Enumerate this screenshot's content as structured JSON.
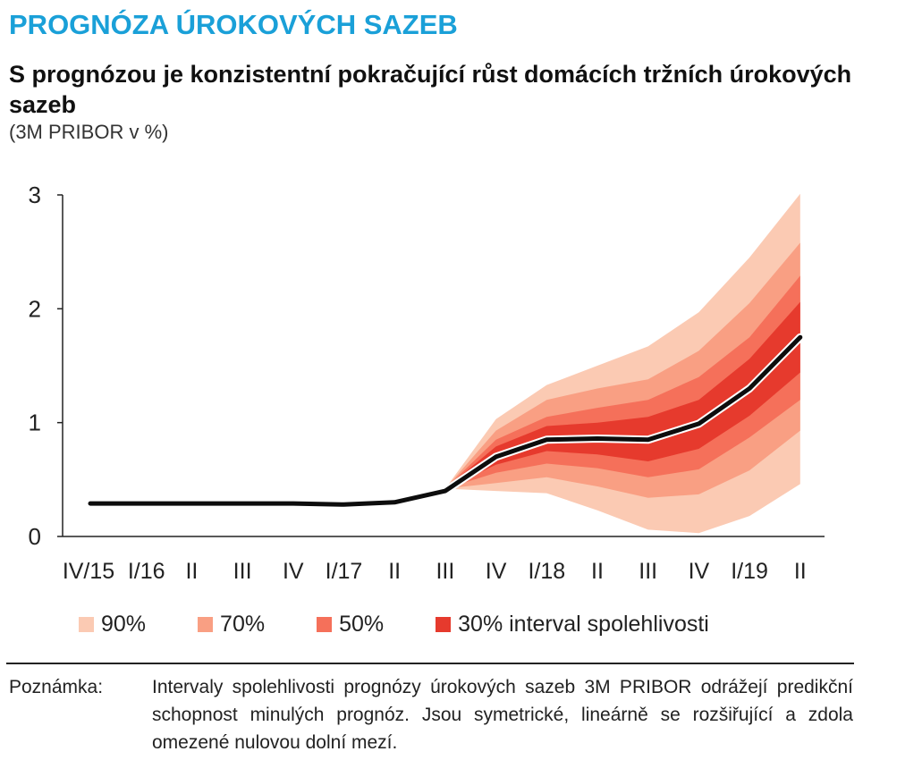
{
  "header": {
    "section_title": "PROGNÓZA ÚROKOVÝCH SAZEB",
    "chart_title": "S prognózou je konzistentní pokračující růst domácích tržních úrokových sazeb",
    "chart_subtitle": "(3M PRIBOR v %)"
  },
  "chart_data": {
    "type": "line",
    "title": "S prognózou je konzistentní pokračující růst domácích tržních úrokových sazeb",
    "subtitle": "(3M PRIBOR v %)",
    "xlabel": "",
    "ylabel": "",
    "categories": [
      "IV/15",
      "I/16",
      "II",
      "III",
      "IV",
      "I/17",
      "II",
      "III",
      "IV",
      "I/18",
      "II",
      "III",
      "IV",
      "I/19",
      "II"
    ],
    "ylim": [
      0,
      3
    ],
    "yticks": [
      "0",
      "1",
      "2",
      "3"
    ],
    "grid": false,
    "series": [
      {
        "values": [
          0.29,
          0.29,
          0.29,
          0.29,
          0.29,
          0.28,
          0.3,
          0.4,
          0.7,
          0.85,
          0.86,
          0.85,
          0.99,
          1.3,
          1.75
        ]
      }
    ],
    "fan_start_index": 7,
    "bands": [
      {
        "name": "90%",
        "color": "#fbcab3",
        "upper": [
          0.42,
          1.03,
          1.33,
          1.5,
          1.67,
          1.97,
          2.45,
          3.01
        ],
        "lower": [
          0.42,
          0.4,
          0.38,
          0.23,
          0.06,
          0.03,
          0.18,
          0.46
        ]
      },
      {
        "name": "70%",
        "color": "#f99f83",
        "upper": [
          0.42,
          0.93,
          1.2,
          1.3,
          1.38,
          1.63,
          2.05,
          2.58
        ],
        "lower": [
          0.42,
          0.47,
          0.52,
          0.44,
          0.34,
          0.37,
          0.58,
          0.93
        ]
      },
      {
        "name": "50%",
        "color": "#f5705a",
        "upper": [
          0.42,
          0.85,
          1.05,
          1.13,
          1.2,
          1.4,
          1.75,
          2.29
        ],
        "lower": [
          0.42,
          0.56,
          0.64,
          0.6,
          0.52,
          0.59,
          0.87,
          1.2
        ]
      },
      {
        "name": "30%",
        "color": "#e63a2d",
        "upper": [
          0.42,
          0.79,
          0.97,
          1.0,
          1.05,
          1.2,
          1.56,
          2.06
        ],
        "lower": [
          0.42,
          0.63,
          0.75,
          0.72,
          0.66,
          0.77,
          1.06,
          1.44
        ]
      }
    ]
  },
  "legend": {
    "items": [
      {
        "label": "90%",
        "color": "#fbcab3"
      },
      {
        "label": "70%",
        "color": "#f99f83"
      },
      {
        "label": "50%",
        "color": "#f5705a"
      },
      {
        "label": "30% interval spolehlivosti",
        "color": "#e63a2d"
      }
    ]
  },
  "note": {
    "label": "Poznámka:",
    "text": "Intervaly spolehlivosti prognózy úrokových sazeb 3M PRIBOR odrážejí predikční schopnost minulých prognóz. Jsou symetrické, lineárně se rozšiřující a zdola omezené nulovou dolní mezí."
  }
}
